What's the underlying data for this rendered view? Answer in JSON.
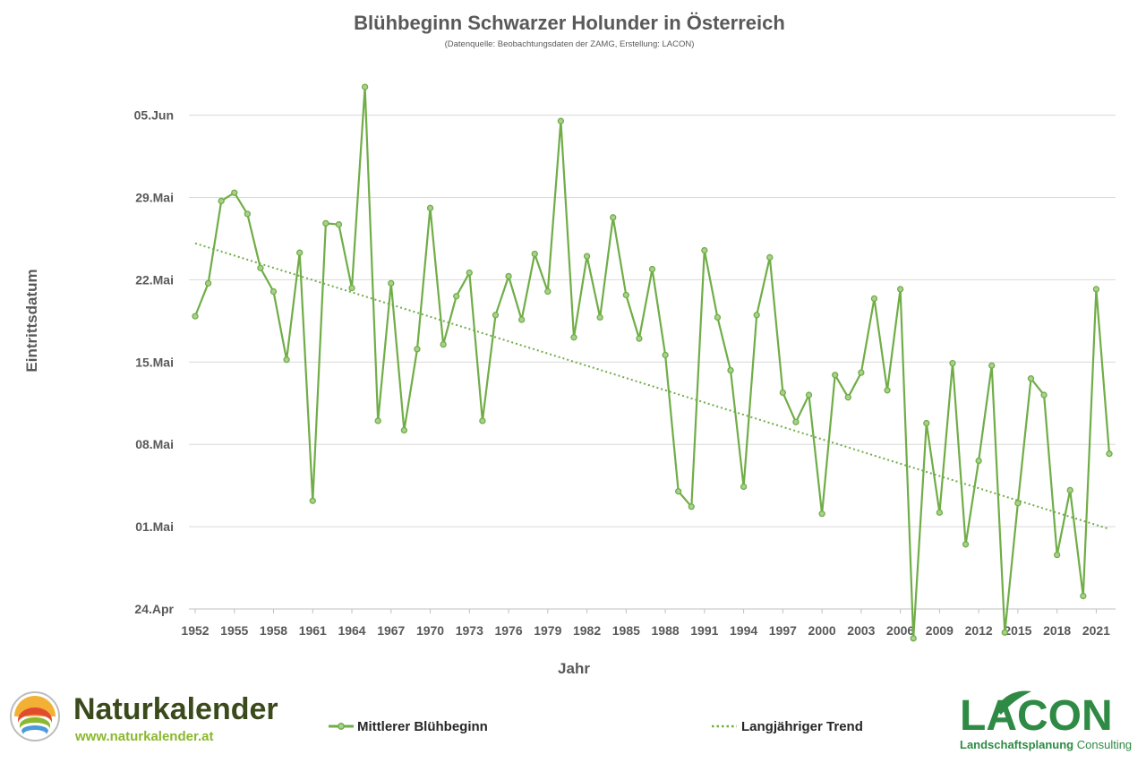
{
  "chart_data": {
    "type": "line",
    "title": "Blühbeginn Schwarzer Holunder in Österreich",
    "subtitle": "(Datenquelle: Beobachtungsdaten der ZAMG,  Erstellung: LACON)",
    "xlabel": "Jahr",
    "ylabel": "Eintrittsdatum",
    "x_ticks": [
      "1952",
      "1955",
      "1958",
      "1961",
      "1964",
      "1967",
      "1970",
      "1973",
      "1976",
      "1979",
      "1982",
      "1985",
      "1988",
      "1991",
      "1994",
      "1997",
      "2000",
      "2003",
      "2006",
      "2009",
      "2012",
      "2015",
      "2018",
      "2021"
    ],
    "y_ticks": [
      "24.Apr",
      "01.Mai",
      "08.Mai",
      "15.Mai",
      "22.Mai",
      "29.Mai",
      "05.Jun"
    ],
    "y_unit_note": "day of year (24.Apr = 114, 05.Jun = 156)",
    "ylim": [
      114,
      156
    ],
    "xlim": [
      1952,
      2022
    ],
    "grid": "horizontal",
    "legend_position": "bottom",
    "series": [
      {
        "name": "Mittlerer Blühbeginn",
        "style": "line-with-markers",
        "color": "#70ad47",
        "x": [
          1952,
          1953,
          1954,
          1955,
          1956,
          1957,
          1958,
          1959,
          1960,
          1961,
          1962,
          1963,
          1964,
          1965,
          1966,
          1967,
          1968,
          1969,
          1970,
          1971,
          1972,
          1973,
          1974,
          1975,
          1976,
          1977,
          1978,
          1979,
          1980,
          1981,
          1982,
          1983,
          1984,
          1985,
          1986,
          1987,
          1988,
          1989,
          1990,
          1991,
          1992,
          1993,
          1994,
          1995,
          1996,
          1997,
          1998,
          1999,
          2000,
          2001,
          2002,
          2003,
          2004,
          2005,
          2006,
          2007,
          2008,
          2009,
          2010,
          2011,
          2012,
          2013,
          2014,
          2015,
          2016,
          2017,
          2018,
          2019,
          2020,
          2021,
          2022
        ],
        "values": [
          138.9,
          141.7,
          148.7,
          149.4,
          147.6,
          143.0,
          141.0,
          135.2,
          144.3,
          123.2,
          146.8,
          146.7,
          141.3,
          158.4,
          130.0,
          141.7,
          129.2,
          136.1,
          148.1,
          136.5,
          140.6,
          142.6,
          130.0,
          139.0,
          142.3,
          138.6,
          144.2,
          141.0,
          155.5,
          137.1,
          144.0,
          138.8,
          147.3,
          140.7,
          137.0,
          142.9,
          135.6,
          124.0,
          122.7,
          144.5,
          138.8,
          134.3,
          124.4,
          139.0,
          143.9,
          132.4,
          129.9,
          132.2,
          122.1,
          133.9,
          132.0,
          134.1,
          140.4,
          132.6,
          141.2,
          111.5,
          129.8,
          122.2,
          134.9,
          119.5,
          126.6,
          134.7,
          112.0,
          123.0,
          133.6,
          132.2,
          118.6,
          124.1,
          115.1,
          141.2,
          127.2
        ]
      },
      {
        "name": "Langjähriger Trend",
        "style": "dotted",
        "color": "#70ad47",
        "x": [
          1952,
          2022
        ],
        "values": [
          145.1,
          120.8
        ]
      }
    ]
  },
  "legend": {
    "series1": "Mittlerer Blühbeginn",
    "series2": "Langjähriger Trend"
  },
  "branding": {
    "naturkalender_name": "Naturkalender",
    "naturkalender_url": "www.naturkalender.at",
    "lacon_name": "LACON",
    "lacon_tagline_part1": "Landschaftsplanung",
    "lacon_tagline_part2": " Consulting"
  },
  "colors": {
    "series": "#70ad47",
    "grid": "#d9d9d9",
    "text": "#595959",
    "lacon_green": "#2e8a45"
  }
}
